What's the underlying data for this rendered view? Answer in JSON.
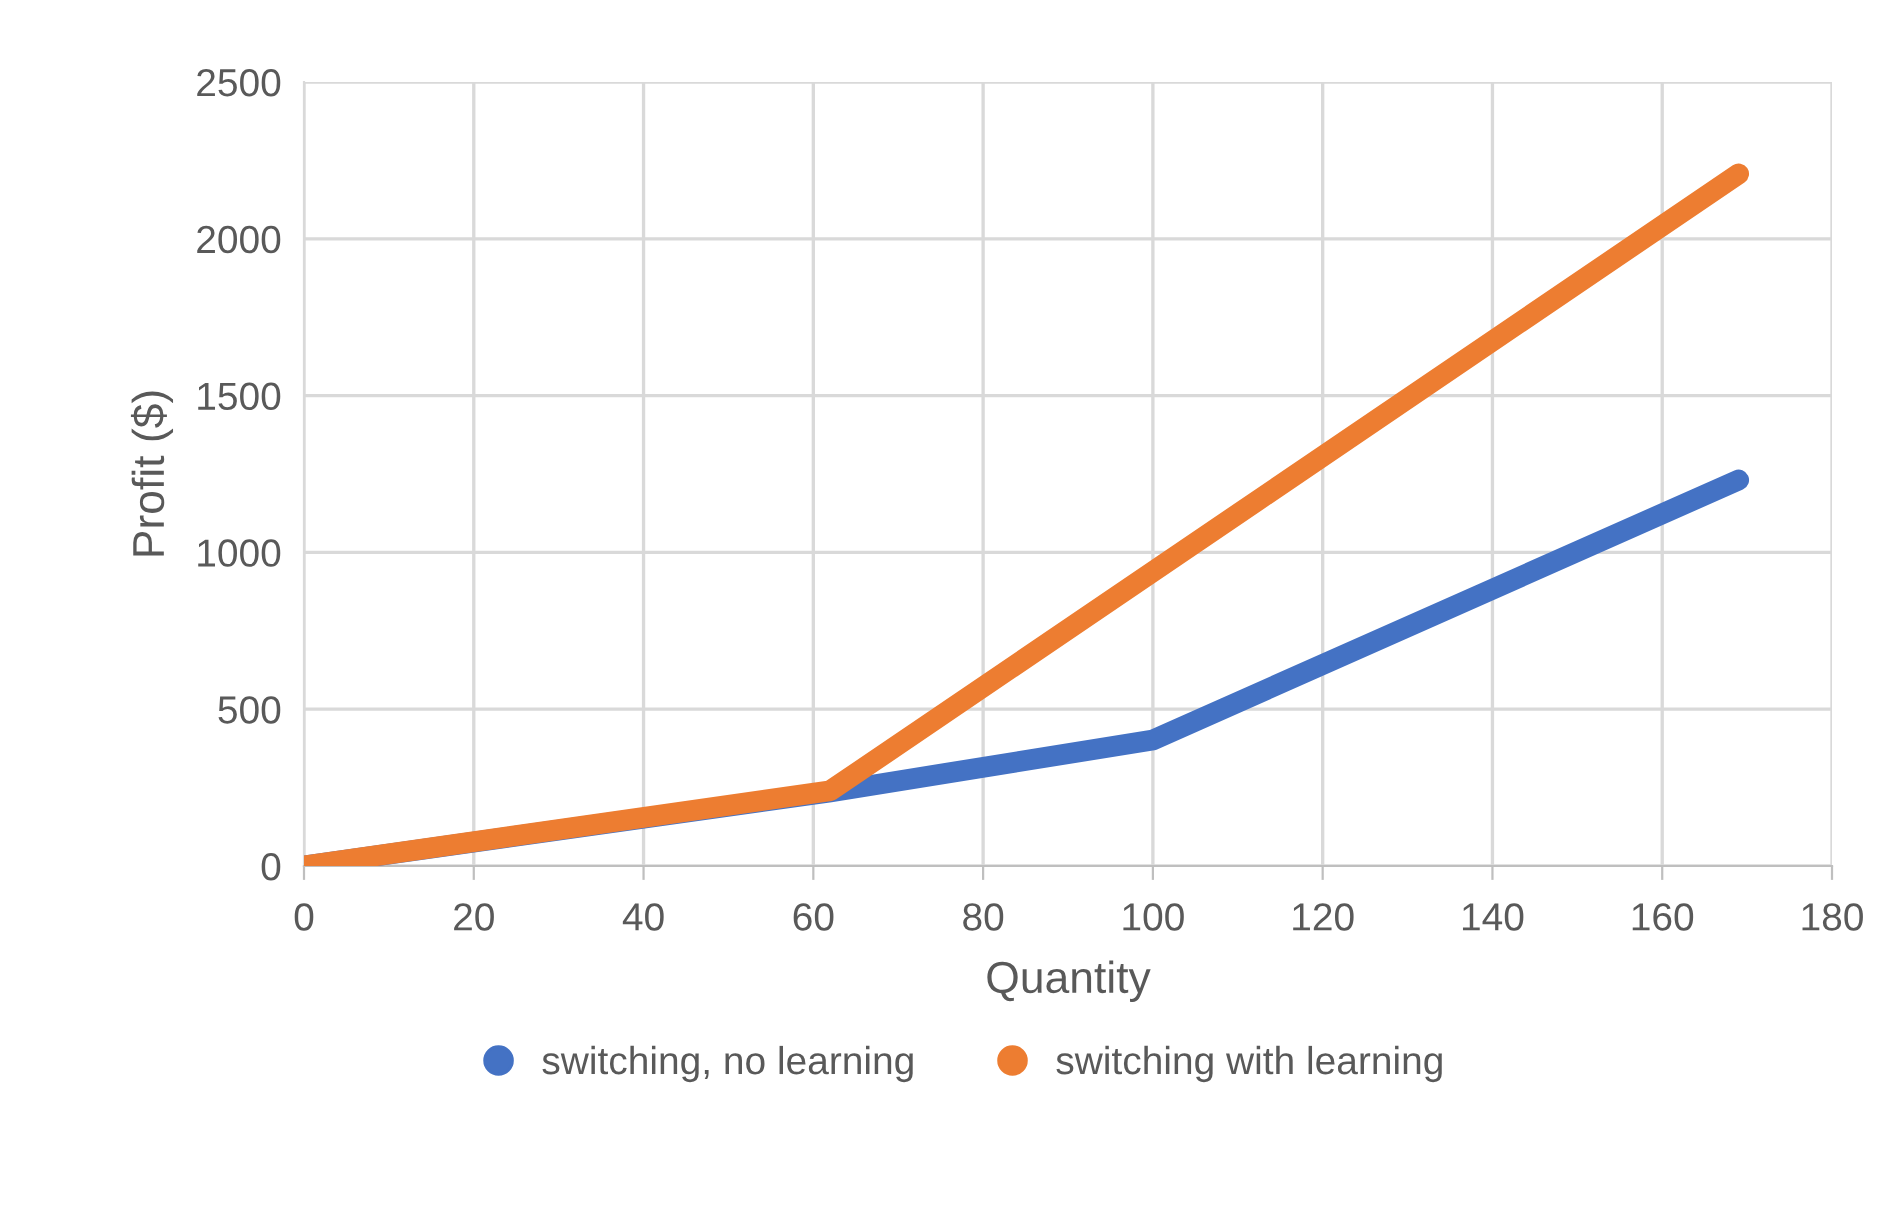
{
  "chart_data": {
    "type": "line",
    "xlabel": "Quantity",
    "ylabel": "Profit ($)",
    "series": [
      {
        "name": "switching, no learning",
        "color": "#4472c4",
        "x": [
          0,
          62,
          100,
          169
        ],
        "values": [
          0,
          236,
          402,
          1231
        ]
      },
      {
        "name": "switching with learning",
        "color": "#ed7d31",
        "x": [
          0,
          62,
          169
        ],
        "values": [
          0,
          240,
          2207
        ]
      }
    ],
    "xlim": [
      0,
      180
    ],
    "xticks": [
      0,
      20,
      40,
      60,
      80,
      100,
      120,
      140,
      160,
      180
    ],
    "ylim": [
      0,
      2500
    ],
    "yticks": [
      0,
      500,
      1000,
      1500,
      2000,
      2500
    ],
    "grid": true,
    "legend": "bottom",
    "marker": "none",
    "line_style": "solid"
  }
}
